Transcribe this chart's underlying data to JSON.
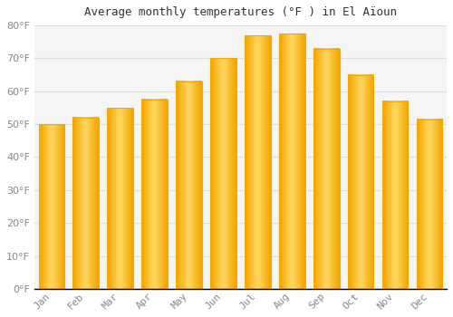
{
  "title": "Average monthly temperatures (°F ) in El Aïoun",
  "months": [
    "Jan",
    "Feb",
    "Mar",
    "Apr",
    "May",
    "Jun",
    "Jul",
    "Aug",
    "Sep",
    "Oct",
    "Nov",
    "Dec"
  ],
  "values": [
    50,
    52,
    55,
    57.5,
    63,
    70,
    77,
    77.5,
    73,
    65,
    57,
    51.5
  ],
  "bar_color_center": "#FFD966",
  "bar_color_edge": "#F5A800",
  "background_color": "#FFFFFF",
  "plot_bg_color": "#F5F5F5",
  "grid_color": "#DDDDDD",
  "tick_label_color": "#888888",
  "title_color": "#333333",
  "axis_color": "#000000",
  "ylim": [
    0,
    80
  ],
  "yticks": [
    0,
    10,
    20,
    30,
    40,
    50,
    60,
    70,
    80
  ],
  "ylabel_suffix": "°F",
  "figsize": [
    5.0,
    3.5
  ],
  "dpi": 100
}
